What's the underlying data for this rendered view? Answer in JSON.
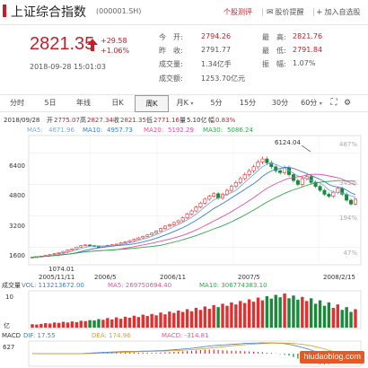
{
  "header": {
    "title": "上证综合指数",
    "code": "(000001.SH)",
    "actions": {
      "review": "个股测评",
      "alert": "股价提醒",
      "watchlist": "加入自选股"
    }
  },
  "quote": {
    "price": "2821.35",
    "change": "+29.58",
    "change_pct": "+1.06%",
    "datetime": "2018-09-28 15:01:03",
    "open_label": "今　开:",
    "open": "2794.26",
    "prev_label": "昨　收:",
    "prev": "2791.77",
    "volume_label": "成交量:",
    "volume": "1.34亿手",
    "amount_label": "成交额:",
    "amount": "1253.70亿元",
    "high_label": "最　高:",
    "high": "2821.76",
    "low_label": "最　低:",
    "low": "2791.84",
    "amplitude_label": "振　幅:",
    "amplitude": "1.07%"
  },
  "tabs": [
    {
      "label": "分时"
    },
    {
      "label": "5日"
    },
    {
      "label": "年线"
    },
    {
      "label": "日K"
    },
    {
      "label": "周K"
    },
    {
      "label": "月K"
    },
    {
      "label": "5分"
    },
    {
      "label": "15分"
    },
    {
      "label": "30分"
    },
    {
      "label": "60分"
    }
  ],
  "active_tab": 4,
  "colors": {
    "up": "#e03030",
    "down": "#1a8a3a",
    "ma5": "#7da9d8",
    "ma10": "#3b7fc4",
    "ma20": "#e0529c",
    "ma30": "#2fa84a"
  },
  "chart_data": {
    "type": "candlestick",
    "info_line": {
      "date": "2018/09/28",
      "open_label": "开",
      "open": "2775.07",
      "high_label": "高",
      "high": "2827.34",
      "close_label": "收",
      "close": "2821.35",
      "low_label": "低",
      "low": "2771.16",
      "vol_label": "量",
      "vol": "5.10亿",
      "amp_label": "幅",
      "amp": "0.83%"
    },
    "ma_legend": [
      {
        "name": "MA5:",
        "value": "4671.96"
      },
      {
        "name": "MA10:",
        "value": "4957.73"
      },
      {
        "name": "MA20:",
        "value": "5192.29"
      },
      {
        "name": "MA30:",
        "value": "5086.24"
      }
    ],
    "y_ticks": [
      "6400",
      "4800",
      "3200",
      "1600"
    ],
    "pct_ticks": [
      "487%",
      "341%",
      "194%",
      "47%"
    ],
    "x_ticks": [
      "2005/11/11",
      "2006/5",
      "2006/11",
      "2007/5",
      "2008/2/15"
    ],
    "annotations": {
      "max": "6124.04",
      "min": "1074.01"
    },
    "volume": {
      "label": "成交量",
      "vol_legend": "VOL: 113213672.00",
      "ma5_legend": "MA5: 269750694.40",
      "ma10_legend": "MA10: 306774383.10",
      "y_top": "10",
      "y_bottom": "亿",
      "bars": [
        10,
        9,
        11,
        13,
        12,
        15,
        14,
        17,
        15,
        18,
        16,
        20,
        19,
        22,
        21,
        25,
        23,
        28,
        24,
        30,
        26,
        32,
        29,
        35,
        31,
        38,
        34,
        40,
        36,
        44,
        39,
        47,
        43,
        50,
        46,
        54,
        48,
        58,
        52,
        62,
        55,
        66,
        60,
        70,
        64,
        74,
        68,
        78,
        72,
        83,
        76,
        88,
        80,
        92,
        85,
        96,
        89,
        100,
        86,
        94,
        82,
        90,
        78,
        86,
        70,
        80,
        64,
        74,
        58,
        68,
        52,
        60,
        46,
        54
      ]
    },
    "macd": {
      "label": "MACD",
      "dif_legend": "DIF: 17.55",
      "dea_legend": "DEA: 174.96",
      "macd_legend": "MACD: -314.81",
      "y_top": "627"
    },
    "series": {
      "close": [
        1098,
        1120,
        1150,
        1190,
        1230,
        1280,
        1330,
        1390,
        1460,
        1520,
        1610,
        1680,
        1720,
        1690,
        1640,
        1620,
        1660,
        1700,
        1730,
        1760,
        1820,
        1880,
        1940,
        2000,
        2080,
        2150,
        2230,
        2320,
        2420,
        2550,
        2680,
        2750,
        2860,
        2950,
        3100,
        3300,
        3450,
        3650,
        3850,
        4050,
        4200,
        4330,
        4100,
        4300,
        4500,
        4700,
        4900,
        5100,
        5300,
        5500,
        5700,
        5950,
        6100,
        5900,
        5700,
        5500,
        5400,
        5650,
        5300,
        5000,
        4800,
        5100,
        5200,
        4900,
        4700,
        4500,
        4300,
        4200,
        4400,
        4600,
        4300,
        4000,
        3800,
        4050
      ]
    }
  },
  "watermark": "hiudaoblog.com"
}
